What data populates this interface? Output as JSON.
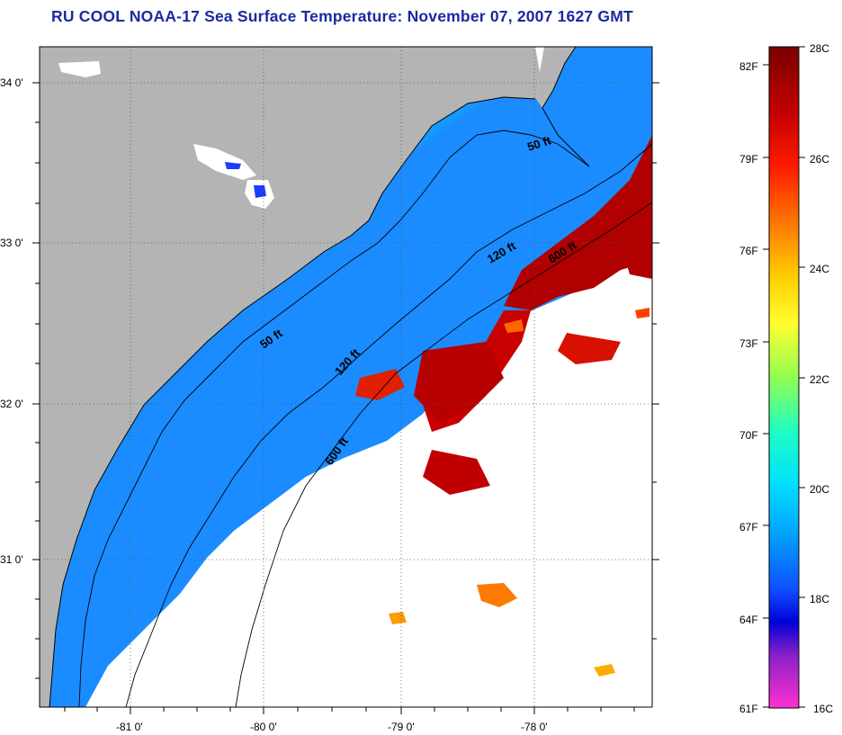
{
  "title": "RU COOL  NOAA-17  Sea Surface Temperature:  November 07, 2007 1627 GMT",
  "colors": {
    "title": "#1a2aa0",
    "land": "#b4b4b4",
    "no_data": "#ffffff",
    "grid": "#555555"
  },
  "map": {
    "lon_ticks": [
      {
        "value": -81,
        "label": "-81 0'"
      },
      {
        "value": -80,
        "label": "-80 0'"
      },
      {
        "value": -79,
        "label": "-79 0'"
      },
      {
        "value": -78,
        "label": "-78 0'"
      }
    ],
    "lat_ticks": [
      {
        "value": 34,
        "label": "34 0'"
      },
      {
        "value": 33,
        "label": "33 0'"
      },
      {
        "value": 32,
        "label": "32 0'"
      },
      {
        "value": 31,
        "label": "31 0'"
      }
    ],
    "contour_labels": [
      "50 ft",
      "50 ft",
      "120 ft",
      "120 ft",
      "600 ft",
      "600 ft"
    ]
  },
  "colorbar": {
    "celsius": [
      "28C",
      "26C",
      "24C",
      "22C",
      "20C",
      "18C",
      "16C"
    ],
    "fahrenheit": [
      "82F",
      "79F",
      "76F",
      "73F",
      "70F",
      "67F",
      "64F",
      "61F"
    ],
    "stops": [
      "#8a0000",
      "#d40000",
      "#ff3300",
      "#ff8800",
      "#ffe000",
      "#ffff20",
      "#9cff40",
      "#20ffc0",
      "#00e8ff",
      "#00a8ff",
      "#1060ff",
      "#0000e0",
      "#8020c0",
      "#ff20d0",
      "#ff40c8"
    ]
  }
}
